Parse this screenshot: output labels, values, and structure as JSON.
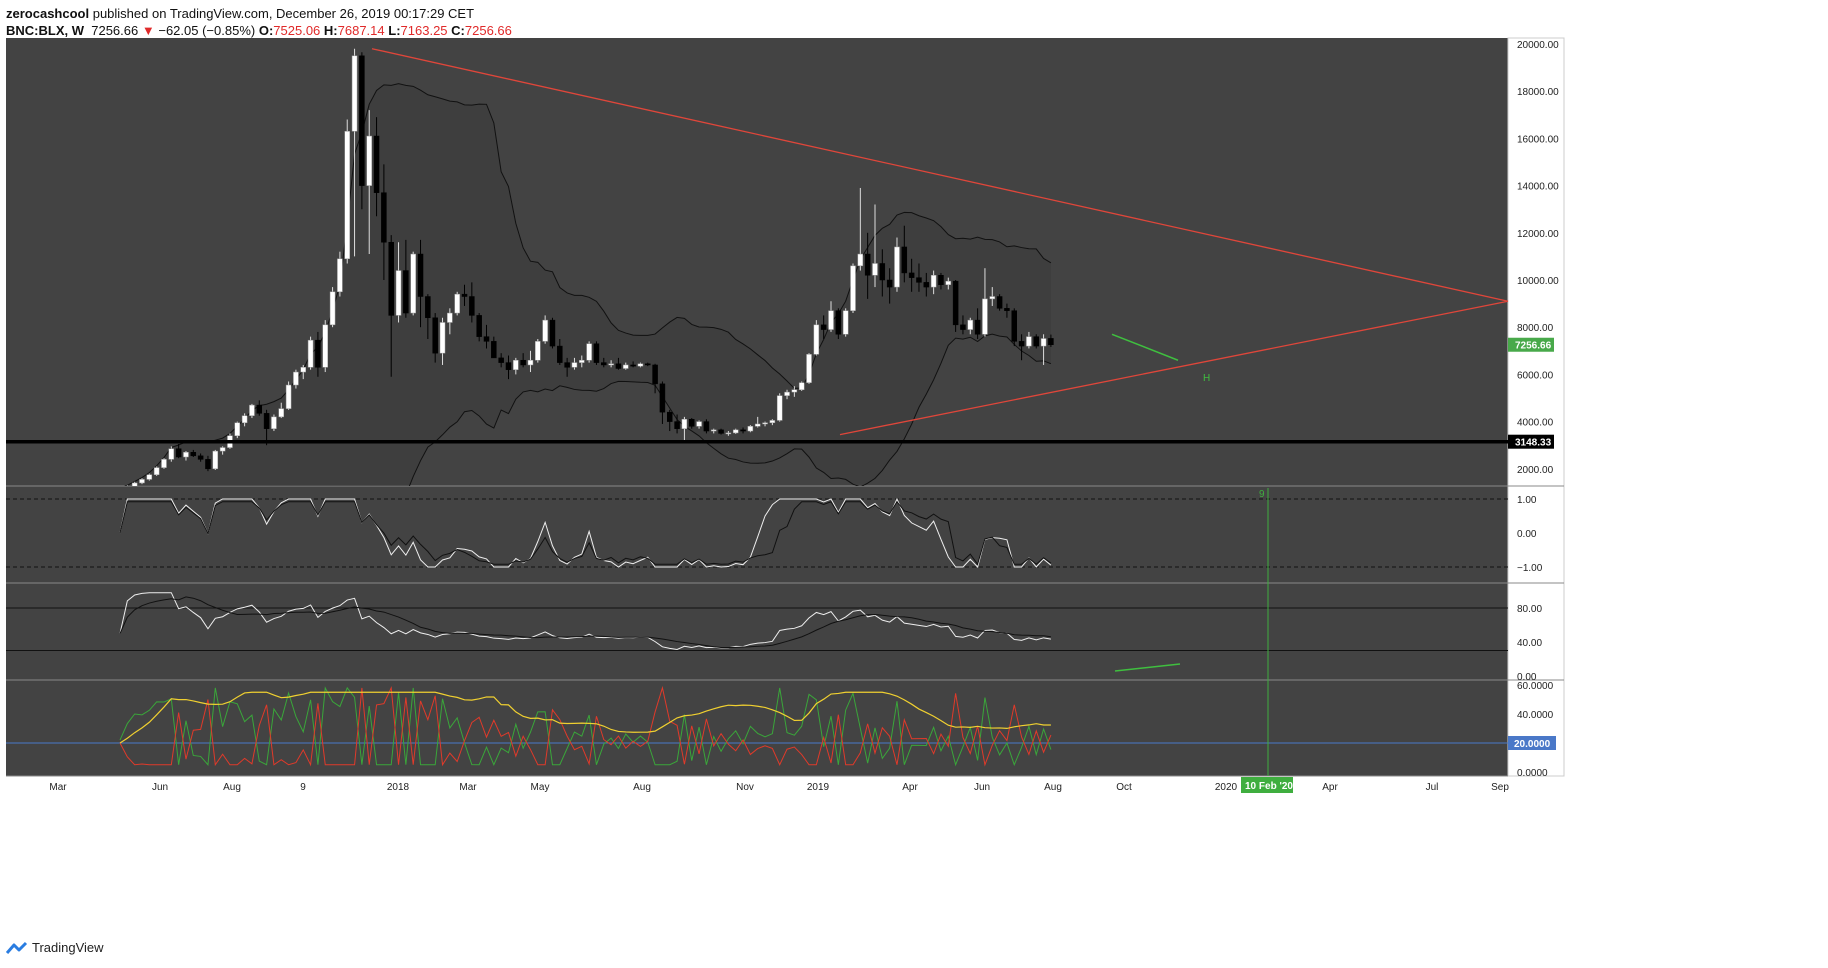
{
  "header": {
    "publisher": "zerocashcool",
    "published_text": "published on TradingView.com, December 26, 2019 00:17:29 CET",
    "symbol": "BNC:BLX, W",
    "last": "7256.66",
    "change": "−62.05 (−0.85%)",
    "open_label": "O:",
    "open": "7525.06",
    "high_label": "H:",
    "high": "7687.14",
    "low_label": "L:",
    "low": "7163.25",
    "close_label": "C:",
    "close": "7256.66"
  },
  "footer": {
    "brand": "TradingView",
    "logo_icon": "tradingview-logo-icon"
  },
  "chart_data": {
    "type": "candlestick",
    "colors": {
      "background": "#434343",
      "up": "#ffffff",
      "down": "#000000",
      "trendline": "#e0463a",
      "support": "#000000",
      "divergence": "#3fbf3f",
      "time_marker": "#3fae3f",
      "price_badge": "#48a94a",
      "adx": "#f0d030",
      "di_plus": "#3aa63a",
      "di_minus": "#e03a2a",
      "adx_level": "#4a78c8"
    },
    "price_axis": {
      "min": 0,
      "max": 20000,
      "ticks": [
        "20000.00",
        "18000.00",
        "16000.00",
        "14000.00",
        "12000.00",
        "10000.00",
        "8000.00",
        "6000.00",
        "4000.00",
        "2000.00"
      ]
    },
    "last_price_badge": "7256.66",
    "support_level_badge": "3148.33",
    "support_level": 3148.33,
    "time_axis_labels": [
      "Mar",
      "Jun",
      "Aug",
      "9",
      "2018",
      "Mar",
      "May",
      "Aug",
      "Nov",
      "2019",
      "Apr",
      "Jun",
      "Aug",
      "Oct",
      "2020",
      "Apr",
      "Jul",
      "Sep"
    ],
    "time_marker_label": "10 Feb '20",
    "time_marker_count": "9",
    "pattern_label": "H",
    "candles": [
      {
        "o": 1150,
        "h": 1200,
        "l": 1100,
        "c": 1180
      },
      {
        "o": 1180,
        "h": 1300,
        "l": 1150,
        "c": 1260
      },
      {
        "o": 1260,
        "h": 1450,
        "l": 1220,
        "c": 1400
      },
      {
        "o": 1400,
        "h": 1600,
        "l": 1350,
        "c": 1550
      },
      {
        "o": 1550,
        "h": 1800,
        "l": 1500,
        "c": 1750
      },
      {
        "o": 1750,
        "h": 2100,
        "l": 1700,
        "c": 2050
      },
      {
        "o": 2050,
        "h": 2450,
        "l": 2000,
        "c": 2400
      },
      {
        "o": 2400,
        "h": 2950,
        "l": 2300,
        "c": 2850
      },
      {
        "o": 2850,
        "h": 3050,
        "l": 2450,
        "c": 2500
      },
      {
        "o": 2500,
        "h": 2750,
        "l": 2350,
        "c": 2700
      },
      {
        "o": 2700,
        "h": 2800,
        "l": 2500,
        "c": 2550
      },
      {
        "o": 2550,
        "h": 2650,
        "l": 2300,
        "c": 2400
      },
      {
        "o": 2400,
        "h": 2550,
        "l": 1900,
        "c": 2000
      },
      {
        "o": 2000,
        "h": 2800,
        "l": 1950,
        "c": 2750
      },
      {
        "o": 2750,
        "h": 2950,
        "l": 2600,
        "c": 2900
      },
      {
        "o": 2900,
        "h": 3500,
        "l": 2850,
        "c": 3400
      },
      {
        "o": 3400,
        "h": 4000,
        "l": 3300,
        "c": 3950
      },
      {
        "o": 3950,
        "h": 4350,
        "l": 3800,
        "c": 4250
      },
      {
        "o": 4250,
        "h": 4750,
        "l": 4150,
        "c": 4700
      },
      {
        "o": 4700,
        "h": 4900,
        "l": 4250,
        "c": 4350
      },
      {
        "o": 4350,
        "h": 4500,
        "l": 3000,
        "c": 3700
      },
      {
        "o": 3700,
        "h": 4300,
        "l": 3600,
        "c": 4200
      },
      {
        "o": 4200,
        "h": 4800,
        "l": 4150,
        "c": 4550
      },
      {
        "o": 4550,
        "h": 5700,
        "l": 4500,
        "c": 5550
      },
      {
        "o": 5550,
        "h": 6200,
        "l": 5400,
        "c": 6100
      },
      {
        "o": 6100,
        "h": 6400,
        "l": 5800,
        "c": 6300
      },
      {
        "o": 6300,
        "h": 7600,
        "l": 6200,
        "c": 7450
      },
      {
        "o": 7450,
        "h": 7800,
        "l": 5900,
        "c": 6300
      },
      {
        "o": 6300,
        "h": 8300,
        "l": 6100,
        "c": 8100
      },
      {
        "o": 8100,
        "h": 9700,
        "l": 8000,
        "c": 9500
      },
      {
        "o": 9500,
        "h": 11200,
        "l": 9300,
        "c": 10900
      },
      {
        "o": 10900,
        "h": 16800,
        "l": 10700,
        "c": 16300
      },
      {
        "o": 16300,
        "h": 19800,
        "l": 11000,
        "c": 19500
      },
      {
        "o": 19500,
        "h": 19650,
        "l": 13000,
        "c": 14000
      },
      {
        "o": 14000,
        "h": 17200,
        "l": 11100,
        "c": 16100
      },
      {
        "o": 16100,
        "h": 16900,
        "l": 12700,
        "c": 13700
      },
      {
        "o": 13700,
        "h": 14900,
        "l": 10000,
        "c": 11600
      },
      {
        "o": 11600,
        "h": 11900,
        "l": 5900,
        "c": 8500
      },
      {
        "o": 8500,
        "h": 11600,
        "l": 8200,
        "c": 10400
      },
      {
        "o": 10400,
        "h": 11700,
        "l": 8400,
        "c": 8600
      },
      {
        "o": 8600,
        "h": 11200,
        "l": 8500,
        "c": 11100
      },
      {
        "o": 11100,
        "h": 11700,
        "l": 8000,
        "c": 9300
      },
      {
        "o": 9300,
        "h": 9400,
        "l": 7500,
        "c": 8400
      },
      {
        "o": 8400,
        "h": 8600,
        "l": 6500,
        "c": 6900
      },
      {
        "o": 6900,
        "h": 8400,
        "l": 6400,
        "c": 8200
      },
      {
        "o": 8200,
        "h": 8800,
        "l": 7700,
        "c": 8600
      },
      {
        "o": 8600,
        "h": 9500,
        "l": 8500,
        "c": 9400
      },
      {
        "o": 9400,
        "h": 9800,
        "l": 8900,
        "c": 9300
      },
      {
        "o": 9300,
        "h": 9900,
        "l": 8200,
        "c": 8500
      },
      {
        "o": 8500,
        "h": 8600,
        "l": 7400,
        "c": 7600
      },
      {
        "o": 7600,
        "h": 8100,
        "l": 7100,
        "c": 7400
      },
      {
        "o": 7400,
        "h": 7600,
        "l": 6700,
        "c": 6700
      },
      {
        "o": 6700,
        "h": 6900,
        "l": 6300,
        "c": 6500
      },
      {
        "o": 6500,
        "h": 6800,
        "l": 5800,
        "c": 6200
      },
      {
        "o": 6200,
        "h": 6700,
        "l": 6000,
        "c": 6600
      },
      {
        "o": 6600,
        "h": 6900,
        "l": 6300,
        "c": 6400
      },
      {
        "o": 6400,
        "h": 7000,
        "l": 6100,
        "c": 6600
      },
      {
        "o": 6600,
        "h": 7500,
        "l": 6500,
        "c": 7400
      },
      {
        "o": 7400,
        "h": 8500,
        "l": 7300,
        "c": 8300
      },
      {
        "o": 8300,
        "h": 8400,
        "l": 7100,
        "c": 7200
      },
      {
        "o": 7200,
        "h": 7500,
        "l": 6400,
        "c": 6500
      },
      {
        "o": 6500,
        "h": 6700,
        "l": 5900,
        "c": 6300
      },
      {
        "o": 6300,
        "h": 6700,
        "l": 6200,
        "c": 6500
      },
      {
        "o": 6500,
        "h": 6800,
        "l": 6300,
        "c": 6600
      },
      {
        "o": 6600,
        "h": 7400,
        "l": 6500,
        "c": 7300
      },
      {
        "o": 7300,
        "h": 7400,
        "l": 6400,
        "c": 6500
      },
      {
        "o": 6500,
        "h": 6700,
        "l": 6300,
        "c": 6400
      },
      {
        "o": 6400,
        "h": 6600,
        "l": 6300,
        "c": 6450
      },
      {
        "o": 6450,
        "h": 6700,
        "l": 6200,
        "c": 6250
      },
      {
        "o": 6250,
        "h": 6500,
        "l": 6200,
        "c": 6400
      },
      {
        "o": 6400,
        "h": 6550,
        "l": 6300,
        "c": 6350
      },
      {
        "o": 6350,
        "h": 6500,
        "l": 6300,
        "c": 6450
      },
      {
        "o": 6450,
        "h": 6500,
        "l": 6350,
        "c": 6400
      },
      {
        "o": 6400,
        "h": 6450,
        "l": 5200,
        "c": 5600
      },
      {
        "o": 5600,
        "h": 5700,
        "l": 3900,
        "c": 4400
      },
      {
        "o": 4400,
        "h": 4500,
        "l": 3600,
        "c": 4000
      },
      {
        "o": 4000,
        "h": 4300,
        "l": 3500,
        "c": 3700
      },
      {
        "o": 3700,
        "h": 4200,
        "l": 3200,
        "c": 4100
      },
      {
        "o": 4100,
        "h": 4150,
        "l": 3700,
        "c": 3800
      },
      {
        "o": 3800,
        "h": 4050,
        "l": 3700,
        "c": 4000
      },
      {
        "o": 4000,
        "h": 4100,
        "l": 3500,
        "c": 3600
      },
      {
        "o": 3600,
        "h": 3700,
        "l": 3500,
        "c": 3650
      },
      {
        "o": 3650,
        "h": 3700,
        "l": 3450,
        "c": 3500
      },
      {
        "o": 3500,
        "h": 3600,
        "l": 3400,
        "c": 3520
      },
      {
        "o": 3520,
        "h": 3700,
        "l": 3480,
        "c": 3650
      },
      {
        "o": 3650,
        "h": 3750,
        "l": 3500,
        "c": 3600
      },
      {
        "o": 3600,
        "h": 3850,
        "l": 3550,
        "c": 3800
      },
      {
        "o": 3800,
        "h": 4200,
        "l": 3750,
        "c": 3900
      },
      {
        "o": 3900,
        "h": 4000,
        "l": 3800,
        "c": 3950
      },
      {
        "o": 3950,
        "h": 4100,
        "l": 3850,
        "c": 4050
      },
      {
        "o": 4050,
        "h": 5200,
        "l": 4000,
        "c": 5100
      },
      {
        "o": 5100,
        "h": 5350,
        "l": 4950,
        "c": 5250
      },
      {
        "o": 5250,
        "h": 5500,
        "l": 5050,
        "c": 5350
      },
      {
        "o": 5350,
        "h": 5700,
        "l": 5300,
        "c": 5650
      },
      {
        "o": 5650,
        "h": 6900,
        "l": 5600,
        "c": 6850
      },
      {
        "o": 6850,
        "h": 8300,
        "l": 6800,
        "c": 8100
      },
      {
        "o": 8100,
        "h": 8500,
        "l": 7500,
        "c": 7900
      },
      {
        "o": 7900,
        "h": 9100,
        "l": 7800,
        "c": 8700
      },
      {
        "o": 8700,
        "h": 8800,
        "l": 7500,
        "c": 7700
      },
      {
        "o": 7700,
        "h": 8800,
        "l": 7600,
        "c": 8700
      },
      {
        "o": 8700,
        "h": 10700,
        "l": 8600,
        "c": 10600
      },
      {
        "o": 10600,
        "h": 13900,
        "l": 10400,
        "c": 11100
      },
      {
        "o": 11100,
        "h": 12000,
        "l": 9200,
        "c": 10200
      },
      {
        "o": 10200,
        "h": 13200,
        "l": 9700,
        "c": 10700
      },
      {
        "o": 10700,
        "h": 11300,
        "l": 9300,
        "c": 10000
      },
      {
        "o": 10000,
        "h": 10500,
        "l": 9000,
        "c": 9700
      },
      {
        "o": 9700,
        "h": 11800,
        "l": 9500,
        "c": 11400
      },
      {
        "o": 11400,
        "h": 12300,
        "l": 9900,
        "c": 10300
      },
      {
        "o": 10300,
        "h": 10900,
        "l": 9500,
        "c": 10100
      },
      {
        "o": 10100,
        "h": 10700,
        "l": 9500,
        "c": 9900
      },
      {
        "o": 9900,
        "h": 10300,
        "l": 9300,
        "c": 9700
      },
      {
        "o": 9700,
        "h": 10400,
        "l": 9400,
        "c": 10200
      },
      {
        "o": 10200,
        "h": 10300,
        "l": 9600,
        "c": 9800
      },
      {
        "o": 9800,
        "h": 10100,
        "l": 9600,
        "c": 9950
      },
      {
        "o": 9950,
        "h": 10000,
        "l": 7800,
        "c": 8100
      },
      {
        "o": 8100,
        "h": 8500,
        "l": 7700,
        "c": 7900
      },
      {
        "o": 7900,
        "h": 8400,
        "l": 7700,
        "c": 8300
      },
      {
        "o": 8300,
        "h": 8800,
        "l": 7500,
        "c": 7700
      },
      {
        "o": 7700,
        "h": 10500,
        "l": 7600,
        "c": 9200
      },
      {
        "o": 9200,
        "h": 9700,
        "l": 8900,
        "c": 9300
      },
      {
        "o": 9300,
        "h": 9400,
        "l": 8700,
        "c": 8800
      },
      {
        "o": 8800,
        "h": 9000,
        "l": 8400,
        "c": 8700
      },
      {
        "o": 8700,
        "h": 8800,
        "l": 7200,
        "c": 7400
      },
      {
        "o": 7400,
        "h": 7700,
        "l": 6600,
        "c": 7200
      },
      {
        "o": 7200,
        "h": 7800,
        "l": 7100,
        "c": 7600
      },
      {
        "o": 7600,
        "h": 7700,
        "l": 7100,
        "c": 7200
      },
      {
        "o": 7200,
        "h": 7700,
        "l": 6400,
        "c": 7520
      },
      {
        "o": 7525.06,
        "h": 7687.14,
        "l": 7163.25,
        "c": 7256.66
      }
    ],
    "stoch_rsi_ticks": [
      "1.00",
      "0.00",
      "−1.00"
    ],
    "rsi_ticks": [
      "80.00",
      "40.00",
      "0.00"
    ],
    "dmi_ticks": [
      "60.0000",
      "40.0000",
      "20.0000",
      "0.0000"
    ],
    "adx_level_badge": "20.0000"
  }
}
